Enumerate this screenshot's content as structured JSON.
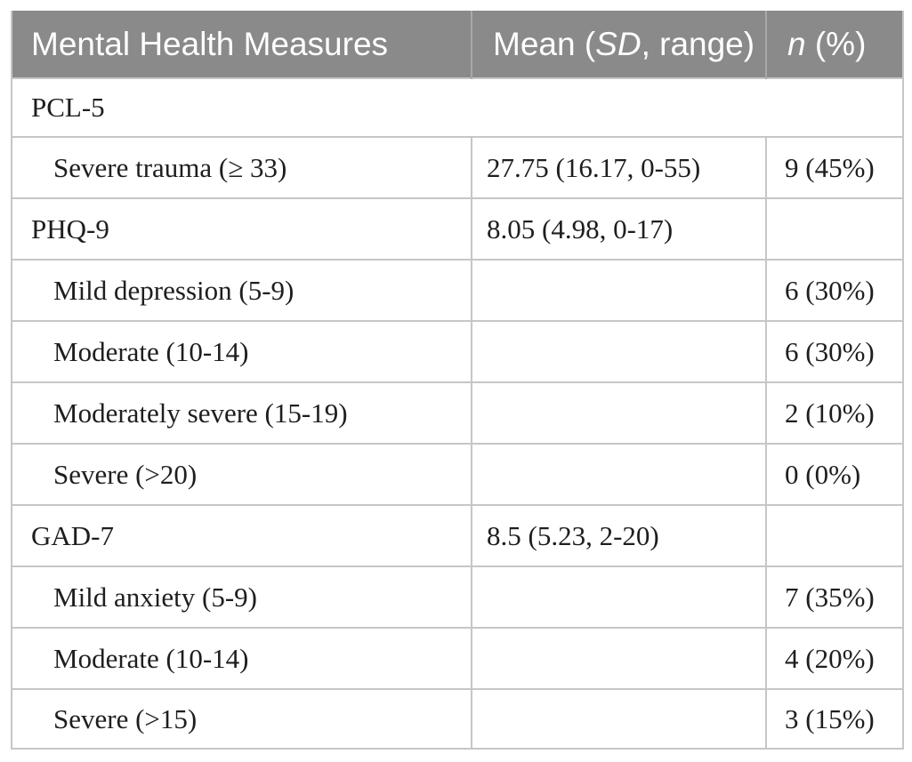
{
  "colors": {
    "header_bg": "#8a8a8a",
    "header_text": "#ffffff",
    "header_divider": "#a9a9a9",
    "border": "#c6c6c6",
    "text": "#1e1e1e",
    "page_bg": "#ffffff"
  },
  "header": {
    "measures": "Mental Health Measures",
    "mean_prefix": "Mean (",
    "mean_italic": "SD",
    "mean_suffix": ", range)",
    "n_italic": "n",
    "n_suffix": " (%)"
  },
  "rows": [
    {
      "type": "category-span",
      "label": "PCL-5",
      "mean": "",
      "n": ""
    },
    {
      "type": "sub",
      "label": "Severe trauma (≥ 33)",
      "mean": "27.75 (16.17, 0-55)",
      "n": "9 (45%)"
    },
    {
      "type": "category",
      "label": "PHQ-9",
      "mean": "8.05 (4.98, 0-17)",
      "n": ""
    },
    {
      "type": "sub",
      "label": "Mild depression (5-9)",
      "mean": "",
      "n": "6 (30%)"
    },
    {
      "type": "sub",
      "label": "Moderate (10-14)",
      "mean": "",
      "n": "6 (30%)"
    },
    {
      "type": "sub",
      "label": "Moderately severe (15-19)",
      "mean": "",
      "n": "2 (10%)"
    },
    {
      "type": "sub",
      "label": "Severe (>20)",
      "mean": "",
      "n": "0 (0%)"
    },
    {
      "type": "category",
      "label": "GAD-7",
      "mean": "8.5 (5.23, 2-20)",
      "n": ""
    },
    {
      "type": "sub",
      "label": "Mild anxiety (5-9)",
      "mean": "",
      "n": "7 (35%)"
    },
    {
      "type": "sub",
      "label": "Moderate (10-14)",
      "mean": "",
      "n": "4 (20%)"
    },
    {
      "type": "sub",
      "label": "Severe (>15)",
      "mean": "",
      "n": "3 (15%)"
    }
  ]
}
